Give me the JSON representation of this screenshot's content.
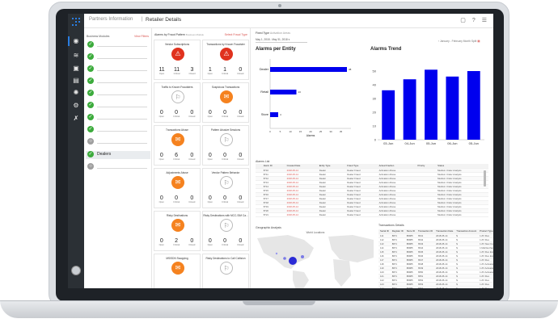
{
  "header": {
    "crumb_parent": "Partners Information",
    "separator": "|",
    "crumb_current": "Retailer Details"
  },
  "modules": {
    "title": "Business Modules",
    "link": "View Filters",
    "active_label": "Dealers"
  },
  "alarms": {
    "title": "Alarms by Fraud Pattern",
    "subtitle": "Business Module",
    "link": "Select Fraud Type",
    "cards": [
      {
        "title": "Vendor Subscriptions",
        "color": "red",
        "glyph": "⚠",
        "values": [
          "11",
          "11",
          "3"
        ],
        "labels": [
          "Open",
          "Critical",
          "Closed"
        ]
      },
      {
        "title": "Transactions by Known Fraudster",
        "color": "red",
        "glyph": "⚠",
        "values": [
          "1",
          "1",
          "0"
        ],
        "labels": [
          "Open",
          "Critical",
          "Closed"
        ]
      },
      {
        "title": "Traffic to Known Fraudsters",
        "color": "white",
        "glyph": "⚐",
        "values": [
          "0",
          "0",
          "0"
        ],
        "labels": [
          "Open",
          "Critical",
          "Closed"
        ]
      },
      {
        "title": "Suspicious Transactions",
        "color": "orange",
        "glyph": "✉",
        "values": [
          "0",
          "0",
          "0"
        ],
        "labels": [
          "Open",
          "Critical",
          "Closed"
        ]
      },
      {
        "title": "Transactions Abuse",
        "color": "orange",
        "glyph": "✉",
        "values": [
          "0",
          "6",
          "0"
        ],
        "labels": [
          "Open",
          "Critical",
          "Closed"
        ]
      },
      {
        "title": "Pattern Abusive Sessions",
        "color": "white",
        "glyph": "⚐",
        "values": [
          "0",
          "0",
          "0"
        ],
        "labels": [
          "Open",
          "Critical",
          "Closed"
        ]
      },
      {
        "title": "Adjustments Abuse",
        "color": "orange",
        "glyph": "✉",
        "values": [
          "0",
          "0",
          "0"
        ],
        "labels": [
          "Open",
          "Critical",
          "Closed"
        ]
      },
      {
        "title": "Vendor Pattern Behavior",
        "color": "white",
        "glyph": "⚐",
        "values": [
          "0",
          "0",
          "0"
        ],
        "labels": [
          "Open",
          "Critical",
          "Closed"
        ]
      },
      {
        "title": "Risky Destinations",
        "color": "orange",
        "glyph": "✉",
        "values": [
          "0",
          "2",
          "0"
        ],
        "labels": [
          "Open",
          "Critical",
          "Closed"
        ]
      },
      {
        "title": "Risky Destinations with MCC-SIM Ca...",
        "color": "white",
        "glyph": "⚐",
        "values": [
          "0",
          "0",
          "0"
        ],
        "labels": [
          "Open",
          "Critical",
          "Closed"
        ]
      },
      {
        "title": "MSISDN Swapping",
        "color": "orange",
        "glyph": "✉",
        "values": [
          "",
          "",
          ""
        ],
        "labels": [
          "",
          "",
          ""
        ]
      },
      {
        "title": "Risky Destinations to Call Collision",
        "color": "white",
        "glyph": "⚐",
        "values": [
          "",
          "",
          ""
        ],
        "labels": [
          "",
          "",
          ""
        ]
      }
    ]
  },
  "filters": {
    "fixed_type_label": "Fixed Type",
    "fixed_type_value": "Activation Areas",
    "date_range": "May 1, 2018 - May 31, 2018"
  },
  "chart_data": [
    {
      "type": "bar",
      "orientation": "horizontal",
      "title": "Alarms per Entity",
      "categories": [
        "Dealer",
        "Retail",
        "Store"
      ],
      "values": [
        38,
        13,
        4
      ],
      "xlabel": "Alarms",
      "xlim": [
        0,
        40
      ],
      "xticks": [
        "0",
        "5",
        "10",
        "15",
        "20",
        "25",
        "30",
        "35"
      ]
    },
    {
      "type": "bar",
      "title": "Alarms Trend",
      "categories": [
        "03-Jun",
        "04-Jun",
        "05-Jun",
        "06-Jun",
        "05-Jun"
      ],
      "values": [
        36,
        44,
        51,
        46,
        50
      ],
      "ylim": [
        0,
        60
      ],
      "yticks": [
        "0",
        "10",
        "20",
        "30",
        "40",
        "50"
      ],
      "hint": "January - February Month Split"
    }
  ],
  "alarm_list": {
    "title": "Alarms List",
    "headers": [
      "",
      "Alarm ID",
      "Created Date",
      "Entity Type",
      "Fraud Type",
      "Actual Fraction",
      "Priority",
      "Status"
    ],
    "rows": [
      [
        "",
        "8710",
        "2018-05-14",
        "Dealer",
        "Dealer Fraud",
        "Activation Abuse",
        "",
        "Medium Under Analysis"
      ],
      [
        "",
        "8711",
        "2018-05-14",
        "Dealer",
        "Dealer Fraud",
        "Activation Abuse",
        "",
        "Medium Under Analysis"
      ],
      [
        "",
        "8712",
        "2018-05-14",
        "Dealer",
        "Dealer Fraud",
        "Activation Abuse",
        "",
        "Medium Under Analysis"
      ],
      [
        "",
        "8713",
        "2018-05-14",
        "Dealer",
        "Dealer Fraud",
        "Activation Abuse",
        "",
        "Medium Under Analysis"
      ],
      [
        "",
        "8714",
        "2018-05-14",
        "Dealer",
        "Dealer Fraud",
        "Activation Abuse",
        "",
        "Medium Under Analysis"
      ],
      [
        "",
        "8715",
        "2018-05-14",
        "Dealer",
        "Dealer Fraud",
        "Activation Abuse",
        "",
        "Medium Under Analysis"
      ],
      [
        "",
        "8716",
        "2018-05-14",
        "Dealer",
        "Dealer Fraud",
        "Activation Abuse",
        "",
        "Medium Under Analysis"
      ],
      [
        "",
        "8717",
        "2018-05-14",
        "Dealer",
        "Dealer Fraud",
        "Activation Abuse",
        "",
        "Medium Under Analysis"
      ],
      [
        "",
        "8718",
        "2018-05-14",
        "Dealer",
        "Dealer Fraud",
        "Activation Abuse",
        "",
        "Medium Under Analysis"
      ],
      [
        "",
        "8719",
        "2018-05-14",
        "Dealer",
        "Dealer Fraud",
        "Activation Abuse",
        "",
        "Medium Under Analysis"
      ],
      [
        "",
        "8720",
        "2018-05-14",
        "Dealer",
        "Dealer Fraud",
        "Activation Abuse",
        "",
        "Medium Under Analysis"
      ],
      [
        "",
        "8721",
        "2018-05-14",
        "Dealer",
        "Dealer Fraud",
        "Activation Abuse",
        "",
        "Medium Under Analysis"
      ]
    ]
  },
  "map": {
    "title": "Geographic Analysis",
    "subtitle": "World Locations"
  },
  "transactions": {
    "title": "Transactions Details",
    "headers": [
      "Serial ID",
      "Register ID",
      "Store ID",
      "Transaction ID",
      "Transaction Date",
      "Transaction Amount",
      "Product Type Desc"
    ],
    "rows": [
      [
        "111",
        "8871",
        "88985",
        "6541",
        "2018-05-14",
        "$",
        "1 ZV Flex"
      ],
      [
        "112",
        "8871",
        "88985",
        "6542",
        "2018-05-14",
        "$",
        "1 ZV Flex"
      ],
      [
        "113",
        "8871",
        "88985",
        "6543",
        "2018-05-14",
        "$",
        "1 ZV New Contract"
      ],
      [
        "114",
        "8871",
        "88985",
        "6544",
        "2018-05-14",
        "$",
        "1 Mall Exchange"
      ],
      [
        "115",
        "8871",
        "88985",
        "6545",
        "2018-05-14",
        "$",
        "1 ZV Flex Exchange"
      ],
      [
        "116",
        "8871",
        "88985",
        "6546",
        "2018-05-14",
        "$",
        "1 ZV Flex Exchange"
      ],
      [
        "117",
        "8871",
        "88985",
        "6547",
        "2018-05-14",
        "$",
        "1 ZV Flex"
      ],
      [
        "118",
        "8871",
        "88985",
        "6548",
        "2018-05-14",
        "$",
        "1 ZV Activation"
      ],
      [
        "119",
        "8871",
        "88985",
        "6549",
        "2018-05-14",
        "$",
        "1 ZV Activation"
      ],
      [
        "120",
        "8871",
        "88985",
        "6550",
        "2018-05-14",
        "$",
        "1 ZV Activation"
      ],
      [
        "121",
        "8871",
        "88985",
        "6551",
        "2018-05-14",
        "$",
        "1 ZV Flex"
      ],
      [
        "122",
        "8871",
        "88985",
        "6552",
        "2018-05-14",
        "$",
        "1 ZV Flex"
      ],
      [
        "123",
        "8871",
        "88985",
        "6553",
        "2018-05-14",
        "$",
        "1 ZV Flex"
      ],
      [
        "124",
        "8871",
        "88985",
        "6554",
        "2018-05-14",
        "$",
        "1 ZV Flex"
      ]
    ]
  },
  "colors": {
    "sidebar": "#2b3035",
    "accent": "#2a7de1",
    "ok_green": "#3cab3c",
    "alarm_red": "#e0321e",
    "alarm_orange": "#f5821f",
    "bar_blue": "#0000ee",
    "map_land": "#e6e6e6",
    "map_dot": "#2b2bd6"
  }
}
